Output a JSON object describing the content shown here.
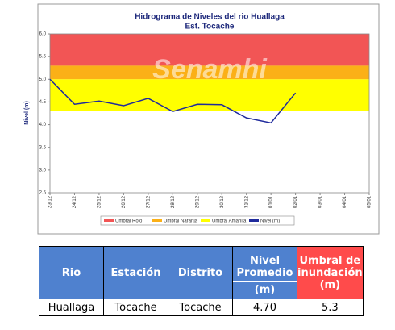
{
  "chart_data": {
    "type": "line",
    "title": "Hidrograma de Niveles del rio Huallaga",
    "subtitle": "Est. Tocache",
    "watermark": "Senamhi",
    "y_label": "Nivel (m)",
    "categories": [
      "23/12",
      "24/12",
      "25/12",
      "26/12",
      "27/12",
      "28/12",
      "29/12",
      "30/12",
      "31/12",
      "01/01",
      "02/01",
      "03/01",
      "04/01",
      "05/01"
    ],
    "series": [
      {
        "name": "Nivel (m)",
        "color": "#1f2a9c",
        "values": [
          5.0,
          4.45,
          4.52,
          4.42,
          4.58,
          4.29,
          4.45,
          4.44,
          4.15,
          4.04,
          4.7,
          null,
          null,
          null
        ]
      }
    ],
    "bands": [
      {
        "name": "Umbral Rojo",
        "color": "#f25555",
        "range": [
          5.3,
          6.0
        ]
      },
      {
        "name": "Umbral Naranja",
        "color": "#fbb017",
        "range": [
          5.0,
          5.3
        ]
      },
      {
        "name": "Umbral Amarilla",
        "color": "#ffff00",
        "range": [
          4.3,
          5.0
        ]
      }
    ],
    "ylim": [
      2.5,
      6.0
    ],
    "yticks": [
      {
        "value": 2.5,
        "label": "2.5"
      },
      {
        "value": 3,
        "label": "3.0"
      },
      {
        "value": 3.5,
        "label": "3.5"
      },
      {
        "value": 4,
        "label": "4.0"
      },
      {
        "value": 4.5,
        "label": "4.5"
      },
      {
        "value": 5,
        "label": "5.0"
      },
      {
        "value": 5.5,
        "label": "5.5"
      },
      {
        "value": 6,
        "label": "6.0"
      }
    ],
    "legend": "bottom"
  },
  "table": {
    "header": [
      "Rio",
      "Estación",
      "Distrito",
      [
        "Nivel Promedio",
        "(m)"
      ],
      "Umbral de inundación (m)"
    ],
    "rows": [
      [
        "Huallaga",
        "Tocache",
        "Tocache",
        "4.70",
        "5.3"
      ]
    ]
  }
}
